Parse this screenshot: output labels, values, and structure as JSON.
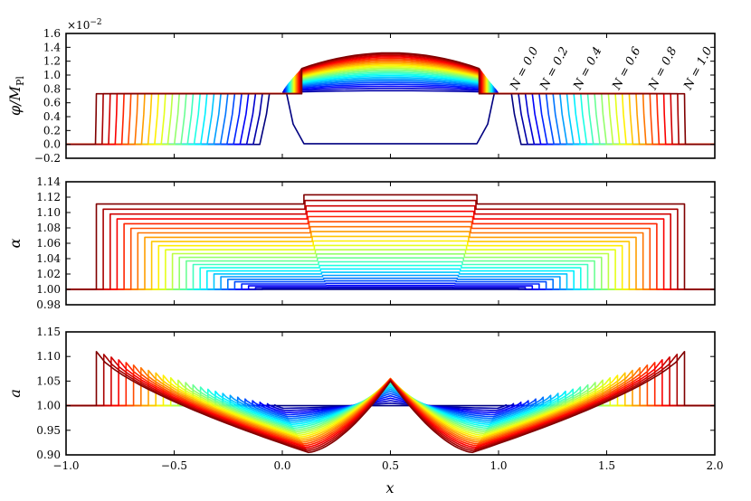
{
  "chart_data": [
    {
      "type": "line",
      "panel": "top",
      "ylabel": "φ/M_Pl",
      "ylabel_main": "φ/M",
      "ylabel_sub": "Pl",
      "offset_text": "×10⁻²",
      "offset_base": "×10",
      "offset_exp": "−2",
      "xlim": [
        -1.0,
        2.0
      ],
      "ylim": [
        -0.2,
        1.6
      ],
      "yticks": [
        -0.2,
        0.0,
        0.2,
        0.4,
        0.6,
        0.8,
        1.0,
        1.2,
        1.4,
        1.6
      ],
      "ytick_labels": [
        "−0.2",
        "0.0",
        "0.2",
        "0.4",
        "0.6",
        "0.8",
        "1.0",
        "1.2",
        "1.4",
        "1.6"
      ],
      "legend_annotations": [
        {
          "text": "N = 0.0",
          "N": 0.0,
          "color": "#00008f"
        },
        {
          "text": "N = 0.2",
          "N": 0.2,
          "color": "#0050ff"
        },
        {
          "text": "N = 0.4",
          "N": 0.4,
          "color": "#10e0ef"
        },
        {
          "text": "N = 0.6",
          "N": 0.6,
          "color": "#9fff60"
        },
        {
          "text": "N = 0.8",
          "N": 0.8,
          "color": "#ff9f00"
        },
        {
          "text": "N = 1.0",
          "N": 1.0,
          "color": "#cf0000"
        }
      ],
      "curve_model": {
        "curves": 26,
        "plateau": 0.73,
        "inner_edge_start": [
          0.0,
          1.0
        ],
        "inner_edge_end": [
          0.09,
          0.91
        ],
        "outer_edge_start": [
          -0.06,
          1.06
        ],
        "outer_edge_end": [
          -0.86,
          1.86
        ],
        "central_bump_peak_end": 1.32,
        "central_bump_peak_start": 0.73
      }
    },
    {
      "type": "line",
      "panel": "middle",
      "ylabel": "α",
      "xlim": [
        -1.0,
        2.0
      ],
      "ylim": [
        0.98,
        1.14
      ],
      "yticks": [
        0.98,
        1.0,
        1.02,
        1.04,
        1.06,
        1.08,
        1.1,
        1.12,
        1.14
      ],
      "ytick_labels": [
        "0.98",
        "1.00",
        "1.02",
        "1.04",
        "1.06",
        "1.08",
        "1.10",
        "1.12",
        "1.14"
      ],
      "curve_model": {
        "curves": 26,
        "baseline": 1.0,
        "outer_level_end": 1.111,
        "center_level_end": 1.123,
        "outer_edge_start": [
          -0.06,
          1.06
        ],
        "outer_edge_end": [
          -0.86,
          1.86
        ]
      }
    },
    {
      "type": "line",
      "panel": "bottom",
      "ylabel": "a",
      "xlabel": "x",
      "xlim": [
        -1.0,
        2.0
      ],
      "ylim": [
        0.9,
        1.15
      ],
      "yticks": [
        0.9,
        0.95,
        1.0,
        1.05,
        1.1,
        1.15
      ],
      "ytick_labels": [
        "0.90",
        "0.95",
        "1.00",
        "1.05",
        "1.10",
        "1.15"
      ],
      "xticks": [
        -1.0,
        -0.5,
        0.0,
        0.5,
        1.0,
        1.5,
        2.0
      ],
      "xtick_labels": [
        "−1.0",
        "−0.5",
        "0.0",
        "0.5",
        "1.0",
        "1.5",
        "2.0"
      ],
      "curve_model": {
        "curves": 26,
        "baseline": 1.0,
        "edge_peak_end": 1.11,
        "center_peak_end": 1.05,
        "center_peak_mid": 1.075,
        "trough_end": 0.905,
        "outer_edge_end": [
          -0.86,
          1.86
        ]
      }
    }
  ]
}
